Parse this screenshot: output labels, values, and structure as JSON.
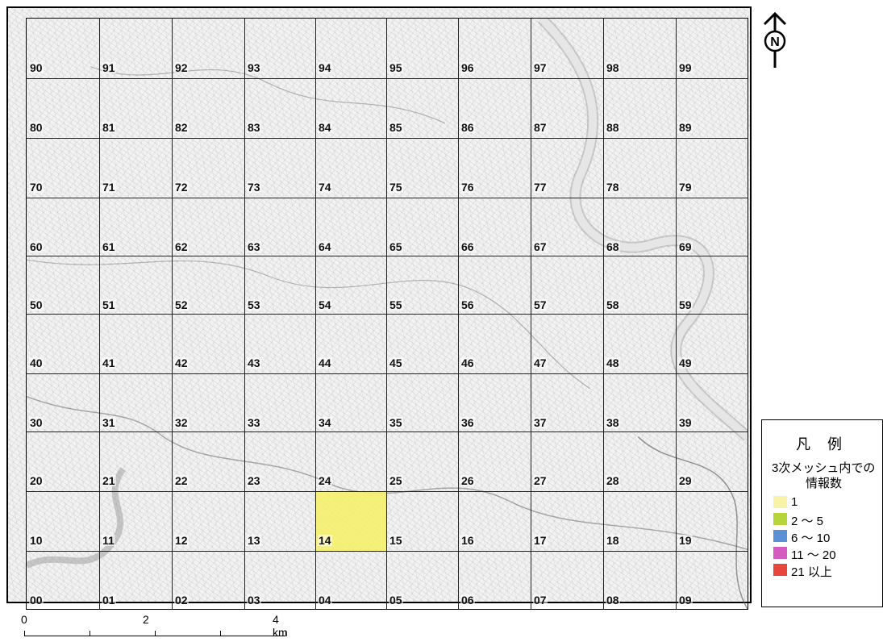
{
  "map": {
    "rows": [
      [
        "90",
        "91",
        "92",
        "93",
        "94",
        "95",
        "96",
        "97",
        "98",
        "99"
      ],
      [
        "80",
        "81",
        "82",
        "83",
        "84",
        "85",
        "86",
        "87",
        "88",
        "89"
      ],
      [
        "70",
        "71",
        "72",
        "73",
        "74",
        "75",
        "76",
        "77",
        "78",
        "79"
      ],
      [
        "60",
        "61",
        "62",
        "63",
        "64",
        "65",
        "66",
        "67",
        "68",
        "69"
      ],
      [
        "50",
        "51",
        "52",
        "53",
        "54",
        "55",
        "56",
        "57",
        "58",
        "59"
      ],
      [
        "40",
        "41",
        "42",
        "43",
        "44",
        "45",
        "46",
        "47",
        "48",
        "49"
      ],
      [
        "30",
        "31",
        "32",
        "33",
        "34",
        "35",
        "36",
        "37",
        "38",
        "39"
      ],
      [
        "20",
        "21",
        "22",
        "23",
        "24",
        "25",
        "26",
        "27",
        "28",
        "29"
      ],
      [
        "10",
        "11",
        "12",
        "13",
        "14",
        "15",
        "16",
        "17",
        "18",
        "19"
      ],
      [
        "00",
        "01",
        "02",
        "03",
        "04",
        "05",
        "06",
        "07",
        "08",
        "09"
      ]
    ],
    "highlighted": [
      {
        "cell": "14",
        "info_count": 1,
        "color": "#f5ef6b"
      }
    ]
  },
  "north": {
    "letter": "N"
  },
  "legend": {
    "title": "凡 例",
    "subtitle_line1": "3次メッシュ内での",
    "subtitle_line2": "情報数",
    "items": [
      {
        "label": "1",
        "color": "#f8f3a6"
      },
      {
        "label": "2 ～ 5",
        "color": "#b7d43a"
      },
      {
        "label": "6 ～ 10",
        "color": "#5b8fd6"
      },
      {
        "label": "11 ～ 20",
        "color": "#d65bc0"
      },
      {
        "label": "21 以上",
        "color": "#e8453c"
      }
    ]
  },
  "scale": {
    "labels": [
      "0",
      "2",
      "4"
    ],
    "unit": "km"
  }
}
